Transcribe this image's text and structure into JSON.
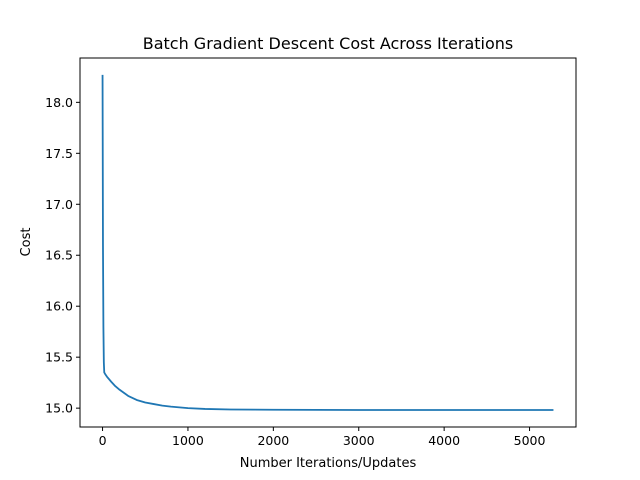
{
  "chart_data": {
    "type": "line",
    "title": "Batch Gradient Descent Cost Across Iterations",
    "xlabel": "Number Iterations/Updates",
    "ylabel": "Cost",
    "xlim": [
      -264,
      5544
    ],
    "ylim": [
      14.815,
      18.435
    ],
    "x_ticks": [
      0,
      1000,
      2000,
      3000,
      4000,
      5000
    ],
    "x_tick_labels": [
      "0",
      "1000",
      "2000",
      "3000",
      "4000",
      "5000"
    ],
    "y_ticks": [
      15.0,
      15.5,
      16.0,
      16.5,
      17.0,
      17.5,
      18.0
    ],
    "y_tick_labels": [
      "15.0",
      "15.5",
      "16.0",
      "16.5",
      "17.0",
      "17.5",
      "18.0"
    ],
    "grid": false,
    "series": [
      {
        "color": "#1f77b4",
        "x": [
          0,
          5,
          10,
          15,
          20,
          30,
          50,
          100,
          150,
          200,
          300,
          400,
          500,
          600,
          700,
          800,
          1000,
          1200,
          1500,
          2000,
          2500,
          3000,
          4000,
          5000,
          5280
        ],
        "y": [
          18.27,
          16.6,
          15.8,
          15.45,
          15.35,
          15.335,
          15.31,
          15.26,
          15.215,
          15.18,
          15.12,
          15.08,
          15.055,
          15.04,
          15.025,
          15.015,
          15.0,
          14.992,
          14.987,
          14.984,
          14.983,
          14.982,
          14.982,
          14.982,
          14.982
        ]
      }
    ]
  }
}
